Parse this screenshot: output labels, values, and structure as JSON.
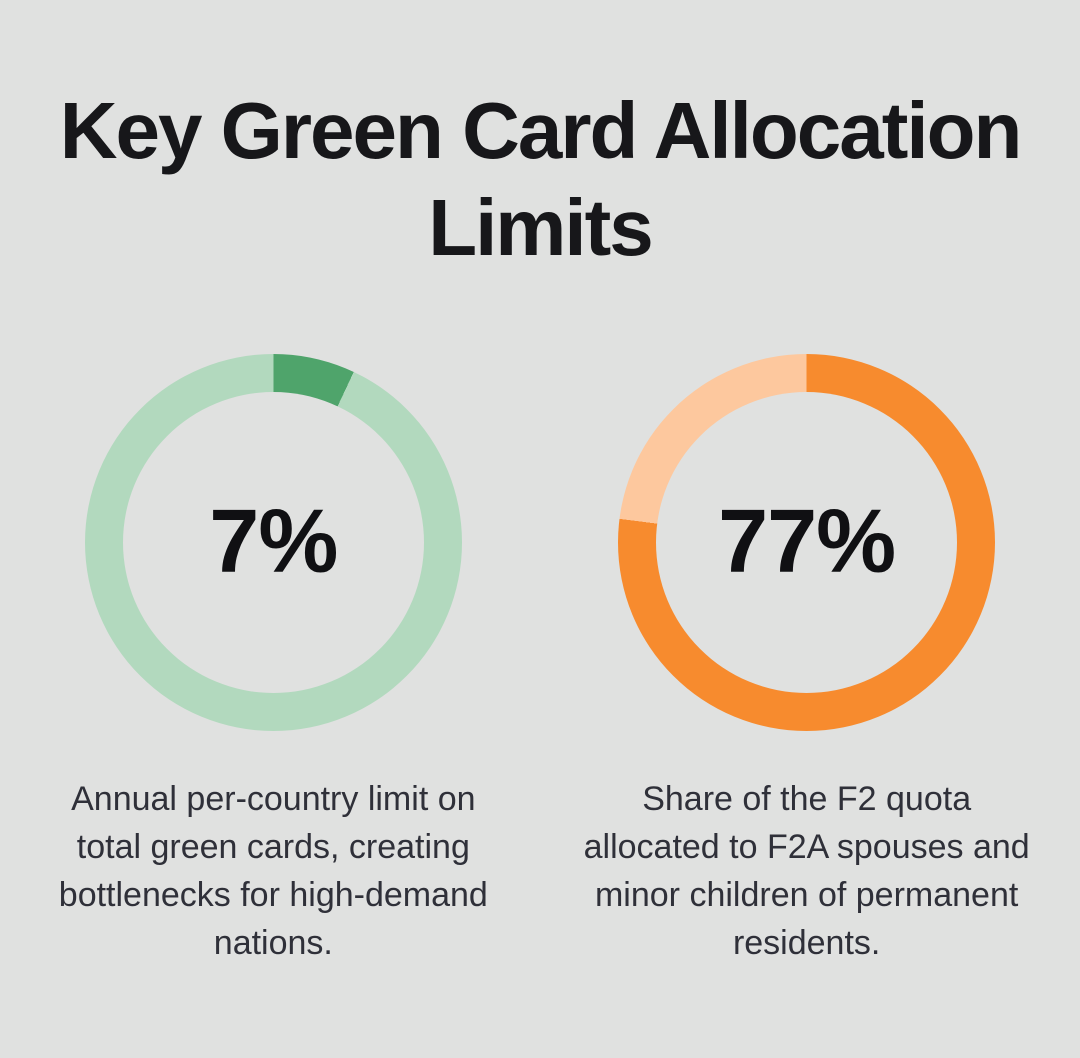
{
  "page": {
    "background_color": "#e0e1e0"
  },
  "title": {
    "lines": [
      "Key Green Card Allocation",
      "Limits"
    ],
    "color": "#17171a"
  },
  "chart_data": [
    {
      "type": "donut",
      "value": 7,
      "max": 100,
      "display_label": "7%",
      "segment_color": "#4fa46b",
      "track_color": "#b2d9be",
      "start_angle_deg": 0,
      "direction": "clockwise",
      "caption": "Annual per-country limit on total green cards, creating bottlenecks for high-demand nations."
    },
    {
      "type": "donut",
      "value": 77,
      "max": 100,
      "display_label": "77%",
      "segment_color": "#f78b2e",
      "track_color": "#fdc89e",
      "start_angle_deg": 0,
      "direction": "clockwise",
      "caption": "Share of the F2 quota allocated to F2A spouses and minor children of permanent residents."
    }
  ]
}
